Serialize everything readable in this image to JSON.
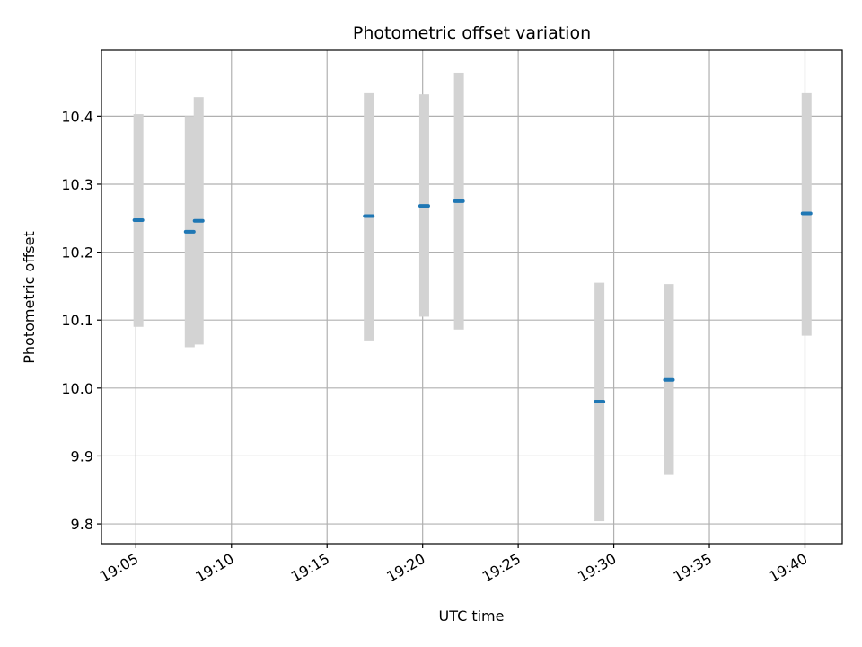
{
  "chart_data": {
    "type": "scatter",
    "title": "Photometric offset variation",
    "xlabel": "UTC time",
    "ylabel": "Photometric offset",
    "grid": true,
    "xlim": [
      "19:03:12",
      "19:41:57"
    ],
    "ylim": [
      9.771,
      10.497
    ],
    "x_ticks": [
      "19:05",
      "19:10",
      "19:15",
      "19:20",
      "19:25",
      "19:30",
      "19:35",
      "19:40"
    ],
    "y_ticks": [
      "9.8",
      "9.9",
      "10.0",
      "10.1",
      "10.2",
      "10.3",
      "10.4"
    ],
    "colors": {
      "points": "#1f77b4",
      "error_bars": "#d3d3d3",
      "grid": "#b0b0b0"
    },
    "points": [
      {
        "x": "19:05:08",
        "y": 10.247,
        "err_low": 10.09,
        "err_high": 10.403
      },
      {
        "x": "19:07:49",
        "y": 10.23,
        "err_low": 10.06,
        "err_high": 10.4
      },
      {
        "x": "19:08:17",
        "y": 10.246,
        "err_low": 10.064,
        "err_high": 10.428
      },
      {
        "x": "19:17:11",
        "y": 10.253,
        "err_low": 10.07,
        "err_high": 10.435
      },
      {
        "x": "19:20:05",
        "y": 10.268,
        "err_low": 10.105,
        "err_high": 10.432
      },
      {
        "x": "19:21:54",
        "y": 10.275,
        "err_low": 10.086,
        "err_high": 10.464
      },
      {
        "x": "19:29:15",
        "y": 9.98,
        "err_low": 9.804,
        "err_high": 10.155
      },
      {
        "x": "19:32:53",
        "y": 10.012,
        "err_low": 9.872,
        "err_high": 10.153
      },
      {
        "x": "19:40:05",
        "y": 10.257,
        "err_low": 10.077,
        "err_high": 10.435
      }
    ]
  }
}
